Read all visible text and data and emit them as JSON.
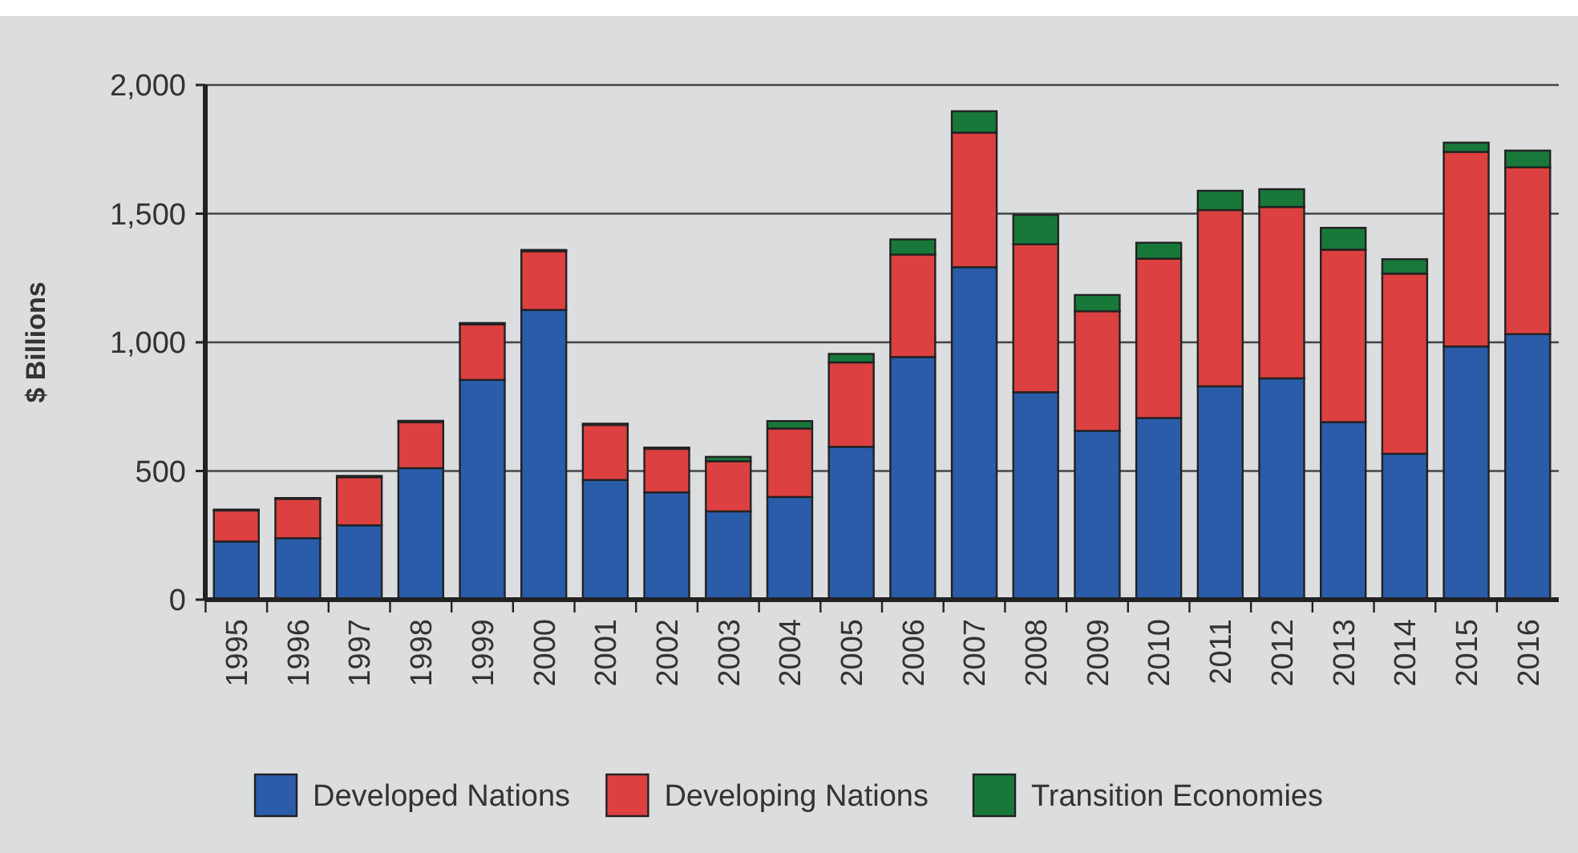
{
  "chart_data": {
    "type": "bar",
    "stacked": true,
    "ylabel": "$ Billions",
    "categories": [
      "1995",
      "1996",
      "1997",
      "1998",
      "1999",
      "2000",
      "2001",
      "2002",
      "2003",
      "2004",
      "2005",
      "2006",
      "2007",
      "2008",
      "2009",
      "2010",
      "2011",
      "2012",
      "2013",
      "2014",
      "2015",
      "2016"
    ],
    "series": [
      {
        "name": "Developed Nations",
        "color": "#2a5caa",
        "values": [
          226,
          239,
          289,
          511,
          854,
          1126,
          465,
          417,
          343,
          399,
          594,
          943,
          1292,
          806,
          656,
          706,
          829,
          860,
          690,
          567,
          984,
          1032
        ]
      },
      {
        "name": "Developing Nations",
        "color": "#dc4040",
        "values": [
          121,
          153,
          187,
          179,
          216,
          228,
          214,
          169,
          195,
          266,
          328,
          398,
          523,
          575,
          465,
          619,
          685,
          666,
          670,
          700,
          756,
          648
        ]
      },
      {
        "name": "Transition Economies",
        "color": "#18783a",
        "values": [
          3,
          3,
          5,
          5,
          5,
          5,
          5,
          5,
          17,
          29,
          33,
          59,
          83,
          114,
          63,
          62,
          75,
          69,
          85,
          56,
          36,
          65
        ]
      }
    ],
    "ylim": [
      0,
      2000
    ],
    "yticks": [
      0,
      {
        "value": 500,
        "label": "500"
      },
      {
        "value": 1000,
        "label": "1,000"
      },
      {
        "value": 1500,
        "label": "1,500"
      },
      {
        "value": 2000,
        "label": "2,000"
      }
    ],
    "grid": "y",
    "legend": "bottom"
  }
}
